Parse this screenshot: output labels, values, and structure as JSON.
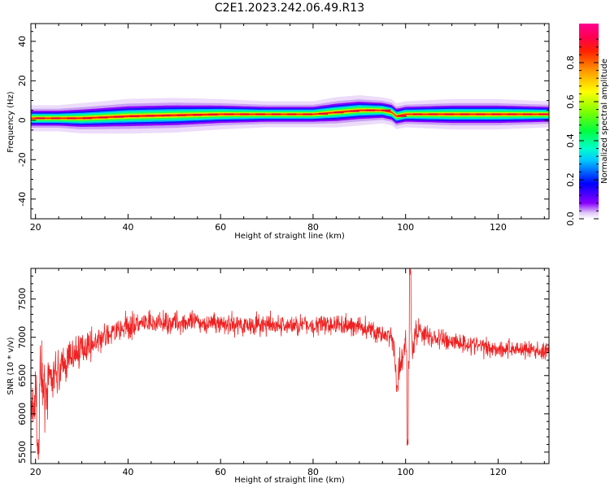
{
  "figure": {
    "title": "C2E1.2023.242.06.49.R13"
  },
  "chart_data": [
    {
      "type": "heatmap",
      "xlabel": "Height of straight line (km)",
      "ylabel": "Frequency (Hz)",
      "xlim": [
        19,
        131
      ],
      "ylim": [
        -50,
        49
      ],
      "xticks": [
        20,
        40,
        60,
        80,
        100,
        120
      ],
      "yticks": [
        -40,
        -20,
        0,
        20,
        40
      ],
      "colorbar": {
        "label": "Normalized spectral amplitude",
        "range": [
          0.0,
          1.0
        ],
        "ticks": [
          "0.0",
          "0.2",
          "0.4",
          "0.6",
          "0.8"
        ],
        "colormap": "gist_ncar-like (white, violet, blue, cyan, green, yellow, orange, red, magenta)"
      },
      "ridge": {
        "description": "Frequency of maximum spectral amplitude vs height",
        "x": [
          19.5,
          22,
          25,
          30,
          40,
          50,
          60,
          70,
          80,
          85,
          90,
          95,
          97,
          98,
          100,
          110,
          120,
          131
        ],
        "center": [
          1,
          1,
          1,
          1,
          2,
          2.5,
          3,
          3,
          3,
          4,
          5,
          5,
          4,
          2,
          3,
          3,
          3,
          3
        ],
        "width": [
          3,
          3,
          3,
          3.5,
          4,
          4,
          3.5,
          3,
          3,
          3.5,
          3.5,
          3,
          3,
          3,
          3,
          3.5,
          3.5,
          3
        ]
      }
    },
    {
      "type": "line",
      "xlabel": "Height of straight line (km)",
      "ylabel": "SNR (10 * v/v)",
      "xlim": [
        19,
        131
      ],
      "ylim": [
        5350,
        7900
      ],
      "xticks": [
        20,
        40,
        60,
        80,
        100,
        120
      ],
      "yticks": [
        5500,
        6000,
        6500,
        7000,
        7500
      ],
      "color": "#ee2222",
      "envelope": {
        "x": [
          19,
          20,
          21,
          22,
          23,
          24,
          25,
          27,
          30,
          35,
          40,
          50,
          60,
          70,
          80,
          90,
          97,
          98,
          99,
          100,
          100.5,
          101,
          101.5,
          102,
          103,
          105,
          110,
          115,
          120,
          125,
          131
        ],
        "mean": [
          5900,
          6200,
          6450,
          6300,
          6400,
          6500,
          6550,
          6700,
          6850,
          7000,
          7150,
          7200,
          7180,
          7150,
          7160,
          7150,
          7000,
          6500,
          6600,
          6950,
          6300,
          7300,
          6800,
          7050,
          7100,
          7000,
          6950,
          6900,
          6850,
          6850,
          6800
        ],
        "noise": [
          400,
          450,
          420,
          350,
          280,
          250,
          230,
          200,
          180,
          160,
          140,
          120,
          120,
          120,
          120,
          120,
          140,
          200,
          200,
          150,
          300,
          350,
          250,
          150,
          140,
          130,
          120,
          110,
          110,
          110,
          100
        ]
      }
    }
  ]
}
